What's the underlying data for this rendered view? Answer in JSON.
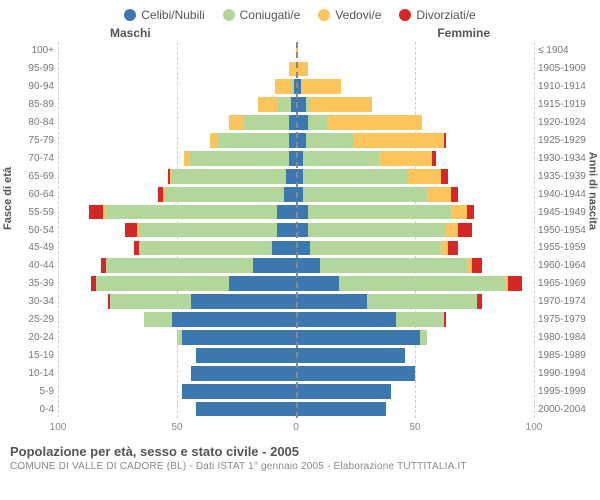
{
  "chart": {
    "type": "population-pyramid",
    "legend": [
      {
        "label": "Celibi/Nubili",
        "color": "#3b78b0"
      },
      {
        "label": "Coniugati/e",
        "color": "#b3d69b"
      },
      {
        "label": "Vedovi/e",
        "color": "#fbc55b"
      },
      {
        "label": "Divorziati/e",
        "color": "#d62728"
      }
    ],
    "side_left": "Maschi",
    "side_right": "Femmine",
    "y_axis_left_title": "Fasce di età",
    "y_axis_right_title": "Anni di nascita",
    "x_ticks": [
      0,
      50,
      100
    ],
    "x_max": 100,
    "grid_color": "#cccccc",
    "centerline_color": "#888888",
    "background": "#ffffff",
    "row_sep_color": "#ffffff",
    "label_fontsize": 10,
    "legend_fontsize": 12,
    "rows": [
      {
        "age": "100+",
        "birth": "≤ 1904",
        "m": [
          0,
          0,
          0,
          0
        ],
        "f": [
          0,
          0,
          1,
          0
        ]
      },
      {
        "age": "95-99",
        "birth": "1905-1909",
        "m": [
          0,
          0,
          3,
          0
        ],
        "f": [
          0,
          0,
          5,
          0
        ]
      },
      {
        "age": "90-94",
        "birth": "1910-1914",
        "m": [
          1,
          1,
          7,
          0
        ],
        "f": [
          2,
          0,
          17,
          0
        ]
      },
      {
        "age": "85-89",
        "birth": "1915-1919",
        "m": [
          2,
          6,
          8,
          0
        ],
        "f": [
          4,
          2,
          26,
          0
        ]
      },
      {
        "age": "80-84",
        "birth": "1920-1924",
        "m": [
          3,
          19,
          6,
          0
        ],
        "f": [
          5,
          8,
          40,
          0
        ]
      },
      {
        "age": "75-79",
        "birth": "1925-1929",
        "m": [
          3,
          30,
          3,
          0
        ],
        "f": [
          4,
          20,
          38,
          1
        ]
      },
      {
        "age": "70-74",
        "birth": "1930-1934",
        "m": [
          3,
          42,
          2,
          0
        ],
        "f": [
          3,
          32,
          22,
          2
        ]
      },
      {
        "age": "65-69",
        "birth": "1935-1939",
        "m": [
          4,
          48,
          1,
          1
        ],
        "f": [
          3,
          44,
          14,
          3
        ]
      },
      {
        "age": "60-64",
        "birth": "1940-1944",
        "m": [
          5,
          50,
          1,
          2
        ],
        "f": [
          3,
          52,
          10,
          3
        ]
      },
      {
        "age": "55-59",
        "birth": "1945-1949",
        "m": [
          8,
          72,
          1,
          6
        ],
        "f": [
          5,
          60,
          7,
          3
        ]
      },
      {
        "age": "50-54",
        "birth": "1950-1954",
        "m": [
          8,
          58,
          1,
          5
        ],
        "f": [
          5,
          58,
          5,
          6
        ]
      },
      {
        "age": "45-49",
        "birth": "1955-1959",
        "m": [
          10,
          56,
          0,
          2
        ],
        "f": [
          6,
          55,
          3,
          4
        ]
      },
      {
        "age": "40-44",
        "birth": "1960-1964",
        "m": [
          18,
          62,
          0,
          2
        ],
        "f": [
          10,
          62,
          2,
          4
        ]
      },
      {
        "age": "35-39",
        "birth": "1965-1969",
        "m": [
          28,
          56,
          0,
          2
        ],
        "f": [
          18,
          70,
          1,
          6
        ]
      },
      {
        "age": "30-34",
        "birth": "1970-1974",
        "m": [
          44,
          34,
          0,
          1
        ],
        "f": [
          30,
          46,
          0,
          2
        ]
      },
      {
        "age": "25-29",
        "birth": "1975-1979",
        "m": [
          52,
          12,
          0,
          0
        ],
        "f": [
          42,
          20,
          0,
          1
        ]
      },
      {
        "age": "20-24",
        "birth": "1980-1984",
        "m": [
          48,
          2,
          0,
          0
        ],
        "f": [
          52,
          3,
          0,
          0
        ]
      },
      {
        "age": "15-19",
        "birth": "1985-1989",
        "m": [
          42,
          0,
          0,
          0
        ],
        "f": [
          46,
          0,
          0,
          0
        ]
      },
      {
        "age": "10-14",
        "birth": "1990-1994",
        "m": [
          44,
          0,
          0,
          0
        ],
        "f": [
          50,
          0,
          0,
          0
        ]
      },
      {
        "age": "5-9",
        "birth": "1995-1999",
        "m": [
          48,
          0,
          0,
          0
        ],
        "f": [
          40,
          0,
          0,
          0
        ]
      },
      {
        "age": "0-4",
        "birth": "2000-2004",
        "m": [
          42,
          0,
          0,
          0
        ],
        "f": [
          38,
          0,
          0,
          0
        ]
      }
    ],
    "caption_title": "Popolazione per età, sesso e stato civile - 2005",
    "caption_sub": "COMUNE DI VALLE DI CADORE (BL) - Dati ISTAT 1° gennaio 2005 - Elaborazione TUTTITALIA.IT"
  }
}
